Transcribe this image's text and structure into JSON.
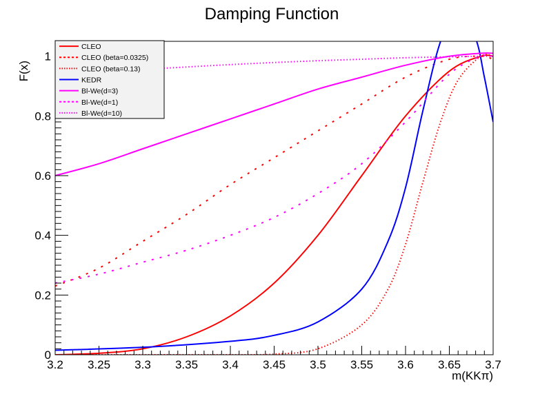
{
  "chart_data": {
    "type": "line",
    "title": "Damping Function",
    "xlabel": "m(KKπ)",
    "ylabel": "F(x)",
    "xlim": [
      3.2,
      3.7
    ],
    "ylim": [
      0,
      1.05
    ],
    "x_ticks": [
      "3.2",
      "3.25",
      "3.3",
      "3.35",
      "3.4",
      "3.45",
      "3.5",
      "3.55",
      "3.6",
      "3.65",
      "3.7"
    ],
    "y_ticks": [
      "0",
      "0.2",
      "0.4",
      "0.6",
      "0.8",
      "1"
    ],
    "grid": false,
    "legend_position": "top-left",
    "series": [
      {
        "name": "CLEO",
        "color": "#ff0000",
        "style": "solid",
        "x": [
          3.2,
          3.25,
          3.3,
          3.35,
          3.4,
          3.45,
          3.5,
          3.55,
          3.6,
          3.65,
          3.686,
          3.7
        ],
        "y": [
          0.0,
          0.005,
          0.02,
          0.06,
          0.13,
          0.24,
          0.4,
          0.6,
          0.8,
          0.95,
          1.0,
          1.0
        ]
      },
      {
        "name": "CLEO (beta=0.0325)",
        "color": "#ff0000",
        "style": "dashed",
        "x": [
          3.2,
          3.25,
          3.3,
          3.35,
          3.4,
          3.45,
          3.5,
          3.55,
          3.6,
          3.65,
          3.686,
          3.7
        ],
        "y": [
          0.23,
          0.29,
          0.38,
          0.47,
          0.57,
          0.66,
          0.75,
          0.84,
          0.93,
          0.99,
          1.0,
          0.99
        ]
      },
      {
        "name": "CLEO (beta=0.13)",
        "color": "#ff0000",
        "style": "dotted",
        "x": [
          3.2,
          3.3,
          3.4,
          3.45,
          3.5,
          3.55,
          3.58,
          3.6,
          3.62,
          3.64,
          3.66,
          3.686,
          3.7
        ],
        "y": [
          0.0,
          0.0,
          0.0,
          0.002,
          0.02,
          0.1,
          0.22,
          0.37,
          0.58,
          0.78,
          0.92,
          1.0,
          1.0
        ]
      },
      {
        "name": "KEDR",
        "color": "#0000ff",
        "style": "solid",
        "x": [
          3.2,
          3.3,
          3.4,
          3.45,
          3.5,
          3.55,
          3.58,
          3.6,
          3.62,
          3.64,
          3.66,
          3.68,
          3.69,
          3.7
        ],
        "y": [
          0.015,
          0.025,
          0.045,
          0.065,
          0.11,
          0.22,
          0.38,
          0.56,
          0.82,
          1.05,
          1.16,
          1.06,
          0.93,
          0.78
        ]
      },
      {
        "name": "Bl-We(d=3)",
        "color": "#ff00ff",
        "style": "solid",
        "x": [
          3.2,
          3.25,
          3.3,
          3.35,
          3.4,
          3.45,
          3.5,
          3.55,
          3.6,
          3.65,
          3.686,
          3.7
        ],
        "y": [
          0.6,
          0.64,
          0.69,
          0.74,
          0.79,
          0.84,
          0.89,
          0.93,
          0.97,
          1.0,
          1.01,
          1.01
        ]
      },
      {
        "name": "Bl-We(d=1)",
        "color": "#ff00ff",
        "style": "dashed",
        "x": [
          3.2,
          3.25,
          3.3,
          3.35,
          3.4,
          3.45,
          3.5,
          3.55,
          3.6,
          3.65,
          3.686,
          3.7
        ],
        "y": [
          0.24,
          0.27,
          0.31,
          0.35,
          0.4,
          0.46,
          0.54,
          0.64,
          0.78,
          0.94,
          1.0,
          1.0
        ]
      },
      {
        "name": "Bl-We(d=10)",
        "color": "#ff00ff",
        "style": "dotted",
        "x": [
          3.2,
          3.25,
          3.3,
          3.35,
          3.4,
          3.45,
          3.5,
          3.55,
          3.6,
          3.65,
          3.686,
          3.7
        ],
        "y": [
          0.94,
          0.948,
          0.956,
          0.964,
          0.972,
          0.979,
          0.985,
          0.99,
          0.995,
          0.998,
          1.0,
          1.0
        ]
      }
    ]
  }
}
